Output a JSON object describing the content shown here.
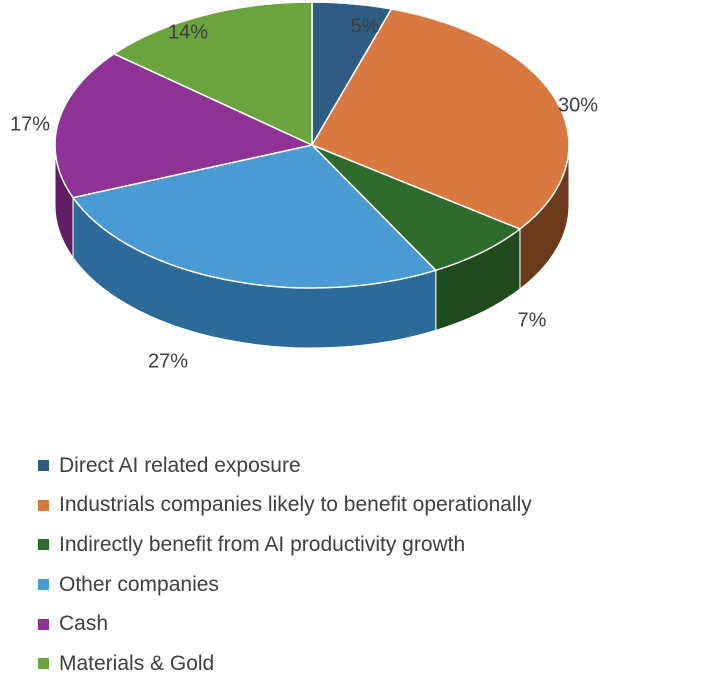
{
  "chart_data": {
    "type": "pie",
    "variant": "3d",
    "categories": [
      "Direct AI related exposure",
      "Industrials companies likely to benefit operationally",
      "Indirectly benefit from AI productivity growth",
      "Other companies",
      "Cash",
      "Materials & Gold"
    ],
    "values": [
      5,
      30,
      7,
      27,
      17,
      14
    ],
    "labels": [
      "5%",
      "30%",
      "7%",
      "27%",
      "17%",
      "14%"
    ],
    "colors": [
      "#2E5C82",
      "#D87942",
      "#2F6B2C",
      "#4A9BD2",
      "#8E3393",
      "#6BA43E"
    ],
    "side_colors": [
      "#1D3B55",
      "#6B3A1D",
      "#1E4A1D",
      "#2D6A97",
      "#5E1F62",
      "#416B25"
    ],
    "legend_position": "bottom-left"
  }
}
